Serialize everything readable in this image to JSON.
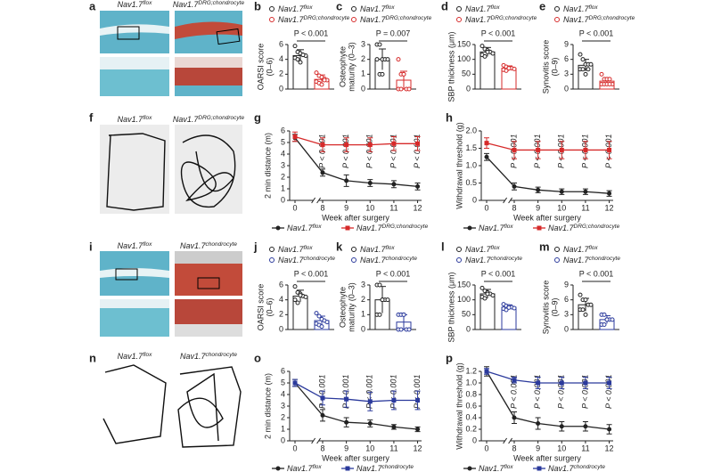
{
  "images": [
    {
      "panel": "a",
      "captions": [
        {
          "name": "Nav1.7",
          "name_sup": "flox"
        },
        {
          "name": "Nav1.7",
          "name_sup": "DRG;chondrocyte"
        }
      ]
    },
    {
      "panel": "f",
      "captions": [
        {
          "name": "Nav1.7",
          "name_sup": "flox"
        },
        {
          "name": "Nav1.7",
          "name_sup": "DRG;chondrocyte"
        }
      ]
    },
    {
      "panel": "i",
      "captions": [
        {
          "name": "Nav1.7",
          "name_sup": "flox"
        },
        {
          "name": "Nav1.7",
          "name_sup": "chondrocyte"
        }
      ]
    },
    {
      "panel": "n",
      "captions": [
        {
          "name": "Nav1.7",
          "name_sup": "flox"
        },
        {
          "name": "Nav1.7",
          "name_sup": "chondrocyte"
        }
      ]
    }
  ],
  "chart_data": [
    {
      "type": "dot",
      "panel": "b",
      "ylabel": [
        "OARSI score",
        "(0–6)"
      ],
      "ylim": [
        0,
        6
      ],
      "yticks": [
        0,
        2,
        4,
        6
      ],
      "p_label": "P < 0.001",
      "series": [
        {
          "name": "Nav1.7",
          "name_sup": "flox",
          "color": "#222222",
          "values": [
            4.5
          ],
          "errors": [
            0.8
          ],
          "points": [
            5.8,
            5.0,
            4.8,
            4.6,
            4.5,
            4.2,
            4.0,
            3.6,
            4.6
          ]
        },
        {
          "name": "Nav1.7",
          "name_sup": "DRG;chondrocyte",
          "color": "#d62a2a",
          "values": [
            1.3
          ],
          "errors": [
            0.6
          ],
          "points": [
            2.2,
            1.8,
            1.6,
            1.4,
            1.2,
            1.0,
            0.8,
            0.6,
            1.2
          ]
        }
      ]
    },
    {
      "type": "dot",
      "panel": "c",
      "ylabel": [
        "Osteophyte",
        "maturity (0–3)"
      ],
      "ylim": [
        0,
        3
      ],
      "yticks": [
        0,
        1,
        2,
        3
      ],
      "p_label": "P = 0.007",
      "series": [
        {
          "name": "Nav1.7",
          "name_sup": "flox",
          "color": "#222222",
          "values": [
            2.0
          ],
          "errors": [
            0.7
          ],
          "points": [
            3,
            3,
            2,
            2,
            2,
            2,
            1,
            1
          ]
        },
        {
          "name": "Nav1.7",
          "name_sup": "DRG;chondrocyte",
          "color": "#d62a2a",
          "values": [
            0.6
          ],
          "errors": [
            0.6
          ],
          "points": [
            2,
            1,
            1,
            0,
            0,
            0,
            0,
            1
          ]
        }
      ]
    },
    {
      "type": "dot",
      "panel": "d",
      "ylabel": [
        "SBP thickness (μm)"
      ],
      "ylim": [
        0,
        150
      ],
      "yticks": [
        0,
        50,
        100,
        150
      ],
      "p_label": "P < 0.001",
      "series": [
        {
          "name": "Nav1.7",
          "name_sup": "flox",
          "color": "#222222",
          "values": [
            125
          ],
          "errors": [
            15
          ],
          "points": [
            145,
            135,
            130,
            125,
            120,
            115,
            110,
            125
          ]
        },
        {
          "name": "Nav1.7",
          "name_sup": "DRG;chondrocyte",
          "color": "#d62a2a",
          "values": [
            70
          ],
          "errors": [
            8
          ],
          "points": [
            80,
            75,
            72,
            70,
            68,
            65,
            62,
            70
          ]
        }
      ]
    },
    {
      "type": "dot",
      "panel": "e",
      "ylabel": [
        "Synovitis score",
        "(0–9)"
      ],
      "ylim": [
        0,
        9
      ],
      "yticks": [
        0,
        3,
        6,
        9
      ],
      "p_label": "P < 0.001",
      "series": [
        {
          "name": "Nav1.7",
          "name_sup": "flox",
          "color": "#222222",
          "values": [
            4.8
          ],
          "errors": [
            1.2
          ],
          "points": [
            7,
            6,
            5,
            5,
            5,
            4,
            4,
            3,
            4
          ]
        },
        {
          "name": "Nav1.7",
          "name_sup": "DRG;chondrocyte",
          "color": "#d62a2a",
          "values": [
            1.6
          ],
          "errors": [
            0.7
          ],
          "points": [
            3,
            2,
            2,
            2,
            1,
            1,
            1,
            1,
            1
          ]
        }
      ]
    },
    {
      "type": "line",
      "panel": "g",
      "ylabel": "2 min distance (m)",
      "xlabel": "Week after surgery",
      "x": [
        0,
        8,
        9,
        10,
        11,
        12
      ],
      "xlim": [
        0,
        12
      ],
      "xticks": [
        0,
        8,
        9,
        10,
        11,
        12
      ],
      "ylim": [
        0,
        6
      ],
      "yticks": [
        0,
        1,
        2,
        3,
        4,
        5,
        6
      ],
      "p_labels": [
        null,
        "P < 0.001",
        "P < 0.001",
        "P < 0.001",
        "P < 0.001",
        "P < 0.001"
      ],
      "series": [
        {
          "name": "Nav1.7",
          "name_sup": "flox",
          "color": "#222222",
          "marker": "circle",
          "values": [
            5.4,
            2.4,
            1.7,
            1.5,
            1.4,
            1.2
          ],
          "errors": [
            0.3,
            0.3,
            0.5,
            0.3,
            0.3,
            0.3
          ]
        },
        {
          "name": "Nav1.7",
          "name_sup": "DRG;chondrocyte",
          "color": "#d62a2a",
          "marker": "square",
          "values": [
            5.5,
            4.8,
            4.8,
            4.8,
            4.9,
            4.9
          ],
          "errors": [
            0.4,
            0.6,
            0.6,
            0.6,
            0.6,
            0.6
          ]
        }
      ]
    },
    {
      "type": "line",
      "panel": "h",
      "ylabel": "Withdrawal threshold (g)",
      "xlabel": "Week after surgery",
      "x": [
        0,
        8,
        9,
        10,
        11,
        12
      ],
      "xlim": [
        0,
        12
      ],
      "xticks": [
        0,
        8,
        9,
        10,
        11,
        12
      ],
      "ylim": [
        0,
        2
      ],
      "yticks": [
        0,
        0.5,
        {
          "value": 1,
          "label": "1.0"
        },
        1.5,
        {
          "value": 2,
          "label": "2.0"
        }
      ],
      "p_labels": [
        null,
        "P < 0.001",
        "P < 0.001",
        "P < 0.001",
        "P < 0.001",
        "P < 0.001"
      ],
      "series": [
        {
          "name": "Nav1.7",
          "name_sup": "flox",
          "color": "#222222",
          "marker": "circle",
          "values": [
            1.25,
            0.4,
            0.3,
            0.25,
            0.25,
            0.2
          ],
          "errors": [
            0.1,
            0.1,
            0.08,
            0.08,
            0.08,
            0.08
          ]
        },
        {
          "name": "Nav1.7",
          "name_sup": "DRG;chondrocyte",
          "color": "#d62a2a",
          "marker": "square",
          "values": [
            1.65,
            1.45,
            1.45,
            1.45,
            1.45,
            1.45
          ],
          "errors": [
            0.15,
            0.25,
            0.25,
            0.25,
            0.25,
            0.25
          ]
        }
      ]
    },
    {
      "type": "dot",
      "panel": "j",
      "ylabel": [
        "OARSI score",
        "(0–6)"
      ],
      "ylim": [
        0,
        6
      ],
      "yticks": [
        0,
        2,
        4,
        6
      ],
      "p_label": "P < 0.001",
      "series": [
        {
          "name": "Nav1.7",
          "name_sup": "flox",
          "color": "#222222",
          "values": [
            4.5
          ],
          "errors": [
            0.8
          ],
          "points": [
            5.8,
            5.0,
            4.8,
            4.5,
            4.4,
            4.0,
            3.6,
            4.6
          ]
        },
        {
          "name": "Nav1.7",
          "name_sup": "chondrocyte",
          "color": "#2b3a9c",
          "values": [
            1.2
          ],
          "errors": [
            0.6
          ],
          "points": [
            2.2,
            1.8,
            1.4,
            1.2,
            1.0,
            0.8,
            0.6,
            0.4
          ]
        }
      ]
    },
    {
      "type": "dot",
      "panel": "k",
      "ylabel": [
        "Osteophyte",
        "maturity (0–3)"
      ],
      "ylim": [
        0,
        3
      ],
      "yticks": [
        0,
        1,
        2,
        3
      ],
      "p_label": "P < 0.001",
      "series": [
        {
          "name": "Nav1.7",
          "name_sup": "flox",
          "color": "#222222",
          "values": [
            2.0
          ],
          "errors": [
            0.9
          ],
          "points": [
            3,
            3,
            2,
            2,
            2,
            1,
            1,
            2
          ]
        },
        {
          "name": "Nav1.7",
          "name_sup": "chondrocyte",
          "color": "#2b3a9c",
          "values": [
            0.5
          ],
          "errors": [
            0.5
          ],
          "points": [
            1,
            1,
            1,
            0,
            0,
            0,
            0,
            1
          ]
        }
      ]
    },
    {
      "type": "dot",
      "panel": "l",
      "ylabel": [
        "SBP thickness (μm)"
      ],
      "ylim": [
        0,
        150
      ],
      "yticks": [
        0,
        50,
        100,
        150
      ],
      "p_label": "P < 0.001",
      "series": [
        {
          "name": "Nav1.7",
          "name_sup": "flox",
          "color": "#222222",
          "values": [
            120
          ],
          "errors": [
            15
          ],
          "points": [
            140,
            130,
            125,
            120,
            115,
            110,
            105,
            120
          ]
        },
        {
          "name": "Nav1.7",
          "name_sup": "chondrocyte",
          "color": "#2b3a9c",
          "values": [
            75
          ],
          "errors": [
            8
          ],
          "points": [
            85,
            80,
            78,
            75,
            72,
            70,
            66,
            74
          ]
        }
      ]
    },
    {
      "type": "dot",
      "panel": "m",
      "ylabel": [
        "Synovitis score",
        "(0–9)"
      ],
      "ylim": [
        0,
        9
      ],
      "yticks": [
        0,
        3,
        6,
        9
      ],
      "p_label": "P < 0.001",
      "series": [
        {
          "name": "Nav1.7",
          "name_sup": "flox",
          "color": "#222222",
          "values": [
            5.0
          ],
          "errors": [
            1.3
          ],
          "points": [
            7,
            6,
            6,
            5,
            5,
            4,
            4,
            3
          ]
        },
        {
          "name": "Nav1.7",
          "name_sup": "chondrocyte",
          "color": "#2b3a9c",
          "values": [
            2.0
          ],
          "errors": [
            0.8
          ],
          "points": [
            3,
            3,
            2,
            2,
            2,
            1,
            1,
            2
          ]
        }
      ]
    },
    {
      "type": "line",
      "panel": "o",
      "ylabel": "2 min distance (m)",
      "xlabel": "Week after surgery",
      "x": [
        0,
        8,
        9,
        10,
        11,
        12
      ],
      "xlim": [
        0,
        12
      ],
      "xticks": [
        0,
        8,
        9,
        10,
        11,
        12
      ],
      "ylim": [
        0,
        6
      ],
      "yticks": [
        0,
        1,
        2,
        3,
        4,
        5,
        6
      ],
      "p_labels": [
        null,
        "P < 0.001",
        "P < 0.001",
        "P < 0.001",
        "P < 0.001",
        "P < 0.001"
      ],
      "series": [
        {
          "name": "Nav1.7",
          "name_sup": "flox",
          "color": "#222222",
          "marker": "circle",
          "values": [
            5.0,
            2.2,
            1.6,
            1.5,
            1.2,
            1.0
          ],
          "errors": [
            0.3,
            0.5,
            0.4,
            0.3,
            0.2,
            0.2
          ]
        },
        {
          "name": "Nav1.7",
          "name_sup": "chondrocyte",
          "color": "#2b3a9c",
          "marker": "square",
          "values": [
            5.0,
            3.7,
            3.6,
            3.4,
            3.5,
            3.5
          ],
          "errors": [
            0.3,
            0.6,
            0.7,
            0.8,
            0.8,
            0.8
          ]
        }
      ]
    },
    {
      "type": "line",
      "panel": "p",
      "ylabel": "Withdrawal threshold (g)",
      "xlabel": "Week after surgery",
      "x": [
        0,
        8,
        9,
        10,
        11,
        12
      ],
      "xlim": [
        0,
        12
      ],
      "xticks": [
        0,
        8,
        9,
        10,
        11,
        12
      ],
      "ylim": [
        0,
        1.2
      ],
      "yticks": [
        0,
        0.2,
        0.4,
        0.6,
        0.8,
        {
          "value": 1,
          "label": "1.0"
        },
        1.2
      ],
      "p_labels": [
        null,
        "P < 0.001",
        "P < 0.001",
        "P < 0.001",
        "P < 0.001",
        "P < 0.001"
      ],
      "series": [
        {
          "name": "Nav1.7",
          "name_sup": "flox",
          "color": "#222222",
          "marker": "circle",
          "values": [
            1.2,
            0.4,
            0.3,
            0.25,
            0.25,
            0.2
          ],
          "errors": [
            0.08,
            0.1,
            0.1,
            0.08,
            0.08,
            0.08
          ]
        },
        {
          "name": "Nav1.7",
          "name_sup": "chondrocyte",
          "color": "#2b3a9c",
          "marker": "square",
          "values": [
            1.2,
            1.05,
            1.0,
            1.0,
            1.0,
            1.0
          ],
          "errors": [
            0.05,
            0.05,
            0.1,
            0.1,
            0.1,
            0.1
          ]
        }
      ]
    }
  ]
}
